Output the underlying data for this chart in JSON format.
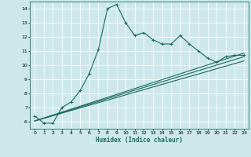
{
  "bg_color": "#cde8e8",
  "grid_color": "#ffffff",
  "line_color": "#1a6b5a",
  "xlabel": "Humidex (Indice chaleur)",
  "xlim": [
    -0.5,
    23.5
  ],
  "ylim": [
    5.5,
    14.5
  ],
  "yticks": [
    6,
    7,
    8,
    9,
    10,
    11,
    12,
    13,
    14
  ],
  "xticks": [
    0,
    1,
    2,
    3,
    4,
    5,
    6,
    7,
    8,
    9,
    10,
    11,
    12,
    13,
    14,
    15,
    16,
    17,
    18,
    19,
    20,
    21,
    22,
    23
  ],
  "main_x": [
    0,
    1,
    2,
    3,
    4,
    5,
    6,
    7,
    8,
    9,
    10,
    11,
    12,
    13,
    14,
    15,
    16,
    17,
    18,
    19,
    20,
    21,
    22,
    23
  ],
  "main_y": [
    6.4,
    5.9,
    5.9,
    7.0,
    7.4,
    8.2,
    9.4,
    11.1,
    14.0,
    14.3,
    13.0,
    12.1,
    12.3,
    11.8,
    11.5,
    11.5,
    12.1,
    11.5,
    11.0,
    10.5,
    10.2,
    10.6,
    10.7,
    10.7
  ],
  "trend1_x": [
    0,
    23
  ],
  "trend1_y": [
    6.05,
    10.3
  ],
  "trend2_x": [
    0,
    23
  ],
  "trend2_y": [
    6.05,
    10.6
  ],
  "trend3_x": [
    0,
    23
  ],
  "trend3_y": [
    6.05,
    10.85
  ]
}
